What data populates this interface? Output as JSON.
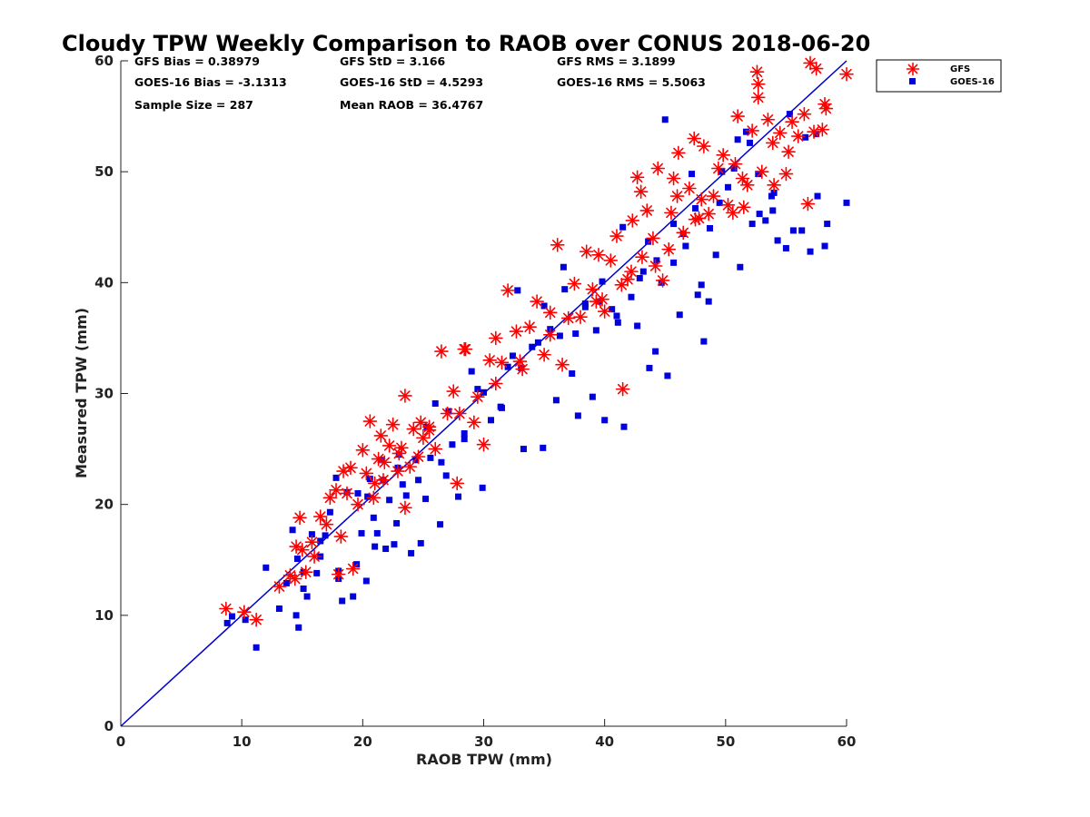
{
  "chart_data": {
    "type": "scatter",
    "title": "Cloudy TPW Weekly Comparison to RAOB over CONUS 2018-06-20",
    "xlabel": "RAOB TPW (mm)",
    "ylabel": "Measured TPW (mm)",
    "xlim": [
      0,
      60
    ],
    "ylim": [
      0,
      60
    ],
    "xticks": [
      "0",
      "10",
      "20",
      "30",
      "40",
      "50",
      "60"
    ],
    "yticks": [
      "0",
      "10",
      "20",
      "30",
      "40",
      "50",
      "60"
    ],
    "grid": false,
    "legend_position": "outside-top-right",
    "reference_line": {
      "x": [
        0,
        60
      ],
      "y": [
        0,
        60
      ],
      "color": "#0000cc"
    },
    "stats": [
      "GFS Bias = 0.38979",
      "GFS StD = 3.166",
      "GFS RMS = 3.1899",
      "GOES-16 Bias = -3.1313",
      "GOES-16 StD = 4.5293",
      "GOES-16 RMS = 5.5063",
      "Sample Size = 287",
      "Mean RAOB = 36.4767"
    ],
    "series": [
      {
        "name": "GFS",
        "marker": "asterisk",
        "color": "#ff0000",
        "x": [
          8.7,
          10.2,
          11.2,
          13.1,
          14.0,
          14.5,
          14.8,
          15.0,
          15.3,
          15.8,
          16.5,
          17.0,
          17.3,
          17.8,
          18.0,
          18.2,
          18.4,
          18.7,
          19.2,
          19.6,
          20.0,
          20.3,
          20.6,
          21.0,
          21.3,
          21.5,
          21.8,
          22.2,
          22.5,
          22.9,
          23.2,
          23.5,
          23.9,
          24.2,
          24.6,
          25.0,
          25.5,
          26.0,
          26.5,
          27.0,
          27.5,
          28.0,
          28.5,
          29.2,
          30.0,
          30.5,
          31.0,
          31.5,
          32.0,
          32.7,
          33.2,
          33.8,
          34.4,
          35.0,
          35.5,
          36.1,
          36.5,
          37.0,
          37.5,
          38.0,
          38.5,
          39.0,
          39.5,
          40.0,
          40.5,
          41.0,
          41.4,
          41.9,
          42.3,
          42.7,
          43.1,
          43.5,
          44.0,
          44.4,
          44.8,
          45.3,
          45.7,
          46.1,
          46.5,
          47.0,
          47.4,
          47.8,
          48.2,
          48.6,
          49.0,
          49.4,
          49.8,
          50.2,
          50.6,
          51.0,
          51.4,
          51.8,
          52.2,
          52.6,
          53.0,
          53.5,
          54.0,
          54.5,
          55.0,
          55.5,
          56.0,
          56.5,
          57.0,
          57.5,
          58.0,
          58.3,
          60.0,
          41.5,
          52.7,
          56.8,
          35.5,
          27.8,
          23.5,
          20.9,
          44.2,
          48.0,
          31.0,
          24.8,
          19.0,
          47.5,
          51.5,
          52.7,
          55.2,
          57.3,
          58.2,
          23.0,
          29.5,
          33.0,
          39.3,
          42.2,
          46.0,
          50.8,
          53.9,
          45.5,
          43.0,
          25.5,
          21.7,
          16.0,
          14.4,
          39.8,
          28.4
        ],
        "y": [
          10.6,
          10.3,
          9.6,
          12.6,
          13.6,
          16.2,
          18.8,
          15.9,
          13.9,
          16.6,
          18.9,
          18.2,
          20.6,
          21.3,
          13.7,
          17.1,
          23.0,
          21.0,
          14.2,
          20.0,
          24.9,
          22.8,
          27.5,
          21.9,
          24.1,
          26.2,
          23.8,
          25.3,
          27.2,
          23.0,
          25.1,
          29.8,
          23.4,
          26.8,
          24.3,
          26.0,
          27.0,
          25.0,
          33.8,
          28.2,
          30.2,
          28.2,
          34.0,
          27.4,
          25.4,
          33.0,
          35.0,
          32.8,
          39.3,
          35.6,
          32.2,
          36.0,
          38.3,
          33.5,
          35.3,
          43.4,
          32.6,
          36.8,
          39.9,
          36.9,
          42.8,
          39.4,
          42.5,
          37.4,
          42.0,
          44.2,
          39.8,
          40.3,
          45.6,
          49.5,
          42.3,
          46.5,
          44.0,
          50.3,
          40.2,
          43.0,
          49.4,
          51.7,
          44.5,
          48.5,
          53.0,
          45.8,
          52.3,
          46.2,
          47.8,
          50.3,
          51.5,
          47.0,
          46.3,
          55.0,
          49.4,
          48.8,
          53.7,
          59.0,
          50.0,
          54.7,
          48.8,
          53.5,
          49.8,
          54.5,
          53.2,
          55.2,
          59.8,
          59.3,
          53.8,
          55.7,
          58.8,
          30.4,
          57.9,
          47.1,
          37.3,
          21.9,
          19.7,
          20.6,
          41.5,
          47.5,
          30.9,
          27.4,
          23.3,
          45.7,
          46.8,
          56.7,
          51.8,
          53.6,
          56.1,
          24.6,
          29.7,
          32.9,
          38.3,
          41.0,
          47.8,
          50.7,
          52.6,
          46.3,
          48.2,
          26.7,
          22.2,
          15.3,
          13.3,
          38.5,
          34.0
        ]
      },
      {
        "name": "GOES-16",
        "marker": "square",
        "color": "#0000dd",
        "x": [
          8.8,
          9.2,
          10.3,
          11.2,
          13.1,
          13.7,
          14.2,
          14.5,
          14.7,
          15.1,
          15.4,
          15.8,
          16.2,
          16.5,
          16.9,
          17.3,
          17.8,
          18.0,
          18.3,
          18.7,
          19.2,
          19.6,
          19.9,
          20.3,
          20.6,
          20.9,
          21.2,
          21.5,
          21.9,
          22.2,
          22.6,
          22.9,
          23.3,
          23.6,
          24.0,
          24.4,
          24.8,
          25.2,
          25.6,
          26.0,
          26.4,
          26.9,
          27.4,
          27.9,
          28.4,
          29.0,
          29.9,
          30.6,
          31.4,
          32.0,
          32.8,
          33.3,
          34.0,
          34.9,
          35.5,
          36.0,
          36.6,
          37.3,
          37.8,
          38.4,
          39.0,
          39.5,
          40.0,
          40.6,
          41.1,
          41.6,
          42.2,
          42.7,
          43.2,
          43.7,
          44.2,
          44.7,
          45.2,
          45.7,
          46.2,
          46.7,
          47.2,
          47.7,
          48.2,
          48.7,
          49.2,
          49.7,
          50.2,
          50.7,
          51.2,
          51.7,
          52.2,
          52.7,
          53.3,
          53.8,
          54.3,
          55.0,
          55.6,
          56.3,
          57.0,
          57.6,
          58.2,
          60.0,
          45.7,
          48.6,
          52.0,
          53.9,
          55.3,
          57.5,
          58.4,
          48.0,
          44.3,
          41.5,
          39.8,
          37.6,
          35.0,
          32.4,
          30.0,
          28.4,
          26.5,
          24.6,
          22.8,
          21.0,
          19.5,
          18.0,
          16.5,
          15.1,
          45.0,
          46.5,
          47.5,
          49.5,
          51.0,
          52.8,
          54.0,
          56.6,
          43.6,
          38.4,
          36.7,
          33.1,
          31.5,
          29.5,
          27.1,
          25.3,
          23.0,
          21.7,
          20.4,
          14.6,
          12.0,
          42.9,
          41.0,
          39.3,
          36.3,
          34.5
        ],
        "y": [
          9.3,
          9.9,
          9.6,
          7.1,
          10.6,
          12.9,
          17.7,
          10.0,
          8.9,
          12.4,
          11.7,
          17.3,
          13.8,
          15.3,
          17.2,
          19.3,
          22.4,
          14.0,
          11.3,
          21.1,
          11.7,
          21.0,
          17.4,
          13.1,
          22.3,
          18.8,
          17.4,
          24.0,
          16.0,
          20.4,
          16.4,
          23.3,
          21.8,
          20.8,
          15.6,
          24.0,
          16.5,
          20.5,
          24.2,
          29.1,
          18.2,
          22.6,
          25.4,
          20.7,
          26.4,
          32.0,
          21.5,
          27.6,
          28.8,
          32.4,
          39.3,
          25.0,
          34.2,
          25.1,
          35.8,
          29.4,
          41.4,
          31.8,
          28.0,
          37.8,
          29.7,
          38.3,
          27.6,
          37.6,
          36.4,
          27.0,
          38.7,
          36.1,
          41.0,
          32.3,
          33.8,
          40.0,
          31.6,
          41.8,
          37.1,
          43.3,
          49.8,
          38.9,
          34.7,
          44.9,
          42.5,
          50.0,
          48.6,
          50.3,
          41.4,
          53.6,
          45.3,
          49.8,
          45.6,
          47.8,
          43.8,
          43.1,
          44.7,
          44.7,
          42.8,
          47.8,
          43.3,
          47.2,
          45.3,
          38.3,
          52.6,
          46.5,
          55.2,
          53.4,
          45.3,
          39.8,
          42.0,
          45.0,
          40.1,
          35.4,
          37.9,
          33.4,
          30.1,
          25.9,
          23.8,
          22.2,
          18.3,
          16.2,
          14.6,
          13.3,
          16.7,
          13.9,
          54.7,
          44.4,
          46.7,
          47.2,
          52.9,
          46.2,
          48.1,
          53.1,
          43.7,
          38.1,
          39.4,
          32.3,
          28.7,
          30.4,
          28.4,
          27.0,
          24.5,
          22.2,
          20.7,
          15.1,
          14.3,
          40.4,
          37.0,
          35.7,
          35.2,
          34.6
        ]
      }
    ]
  }
}
